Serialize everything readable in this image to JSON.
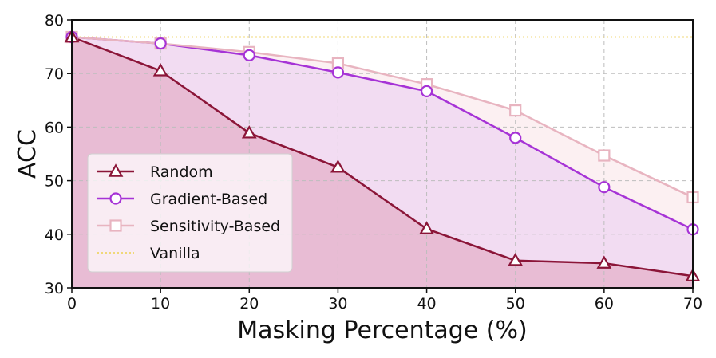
{
  "chart_data": {
    "type": "line",
    "title": "",
    "xlabel": "Masking Percentage (%)",
    "ylabel": "ACC",
    "xlim": [
      0,
      70
    ],
    "ylim": [
      30,
      80
    ],
    "xticks": [
      0,
      10,
      20,
      30,
      40,
      50,
      60,
      70
    ],
    "yticks": [
      30,
      40,
      50,
      60,
      70,
      80
    ],
    "grid": true,
    "legend_position": "center-left",
    "x": [
      0,
      10,
      20,
      30,
      40,
      50,
      60,
      70
    ],
    "series": [
      {
        "name": "Random",
        "values": [
          76.8,
          70.5,
          58.9,
          52.5,
          41.0,
          35.1,
          34.6,
          32.2
        ],
        "color": "#8b1538",
        "marker": "triangle",
        "fill": "#e8bcd4"
      },
      {
        "name": "Gradient-Based",
        "values": [
          76.8,
          75.6,
          73.4,
          70.2,
          66.7,
          58.0,
          48.8,
          40.9
        ],
        "color": "#a633d6",
        "marker": "circle",
        "fill": "#f2dcf2"
      },
      {
        "name": "Sensitivity-Based",
        "values": [
          76.8,
          75.6,
          74.0,
          71.9,
          68.0,
          63.1,
          54.7,
          46.9
        ],
        "color": "#e8b4c0",
        "marker": "square",
        "fill": "#fcf0f2"
      },
      {
        "name": "Vanilla",
        "values": [
          76.8,
          76.8,
          76.8,
          76.8,
          76.8,
          76.8,
          76.8,
          76.8
        ],
        "color": "#f0d878",
        "marker": "none",
        "style": "dotted"
      }
    ]
  }
}
